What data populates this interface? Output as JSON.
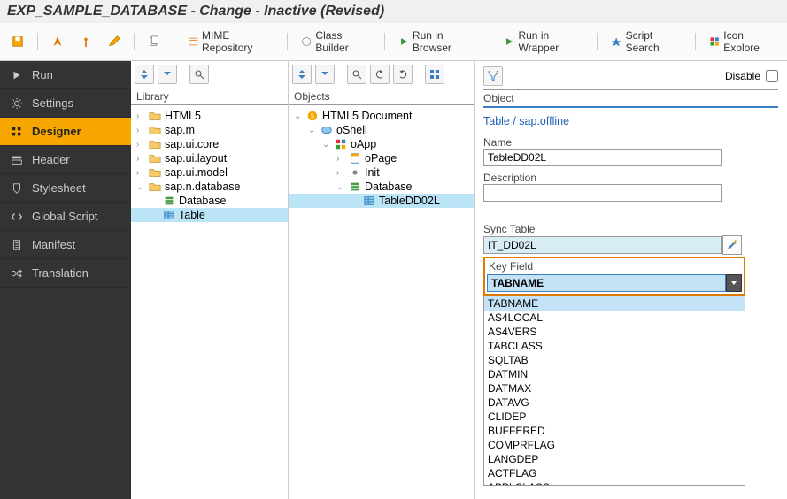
{
  "title": "EXP_SAMPLE_DATABASE - Change - Inactive (Revised)",
  "toolbar": {
    "mime": "MIME Repository",
    "classbuilder": "Class Builder",
    "run_browser": "Run in Browser",
    "run_wrapper": "Run in Wrapper",
    "script_search": "Script Search",
    "icon_explorer": "Icon Explore"
  },
  "sidebar": [
    {
      "icon": "play",
      "label": "Run"
    },
    {
      "icon": "gear",
      "label": "Settings"
    },
    {
      "icon": "grid",
      "label": "Designer",
      "active": true
    },
    {
      "icon": "header",
      "label": "Header"
    },
    {
      "icon": "style",
      "label": "Stylesheet"
    },
    {
      "icon": "code",
      "label": "Global Script"
    },
    {
      "icon": "doc",
      "label": "Manifest"
    },
    {
      "icon": "shuffle",
      "label": "Translation"
    }
  ],
  "library": {
    "title": "Library",
    "items": [
      {
        "indent": 0,
        "tog": ">",
        "type": "folder",
        "label": "HTML5"
      },
      {
        "indent": 0,
        "tog": ">",
        "type": "folder",
        "label": "sap.m"
      },
      {
        "indent": 0,
        "tog": ">",
        "type": "folder",
        "label": "sap.ui.core"
      },
      {
        "indent": 0,
        "tog": ">",
        "type": "folder",
        "label": "sap.ui.layout"
      },
      {
        "indent": 0,
        "tog": ">",
        "type": "folder",
        "label": "sap.ui.model"
      },
      {
        "indent": 0,
        "tog": "v",
        "type": "folder-open",
        "label": "sap.n.database"
      },
      {
        "indent": 1,
        "tog": "·",
        "type": "db",
        "label": "Database"
      },
      {
        "indent": 1,
        "tog": "·",
        "type": "table",
        "label": "Table",
        "sel": true
      }
    ]
  },
  "objects": {
    "title": "Objects",
    "items": [
      {
        "indent": 0,
        "tog": "v",
        "type": "doc",
        "label": "HTML5 Document"
      },
      {
        "indent": 1,
        "tog": "v",
        "type": "oshell",
        "label": "oShell"
      },
      {
        "indent": 2,
        "tog": "v",
        "type": "oapp",
        "label": "oApp"
      },
      {
        "indent": 3,
        "tog": ">",
        "type": "page",
        "label": "oPage"
      },
      {
        "indent": 3,
        "tog": ">",
        "type": "node",
        "label": "Init"
      },
      {
        "indent": 3,
        "tog": "v",
        "type": "db",
        "label": "Database"
      },
      {
        "indent": 4,
        "tog": "·",
        "type": "table",
        "label": "TableDD02L",
        "sel": true
      }
    ]
  },
  "props": {
    "disable_label": "Disable",
    "section": "Object",
    "type": "Table / sap.offline",
    "name_label": "Name",
    "name_value": "TableDD02L",
    "desc_label": "Description",
    "desc_value": "",
    "sync_label": "Sync Table",
    "sync_value": "IT_DD02L",
    "keyfield_label": "Key Field",
    "keyfield_value": "TABNAME",
    "options": [
      "TABNAME",
      "AS4LOCAL",
      "AS4VERS",
      "TABCLASS",
      "SQLTAB",
      "DATMIN",
      "DATMAX",
      "DATAVG",
      "CLIDEP",
      "BUFFERED",
      "COMPRFLAG",
      "LANGDEP",
      "ACTFLAG",
      "APPLCLASS"
    ]
  }
}
